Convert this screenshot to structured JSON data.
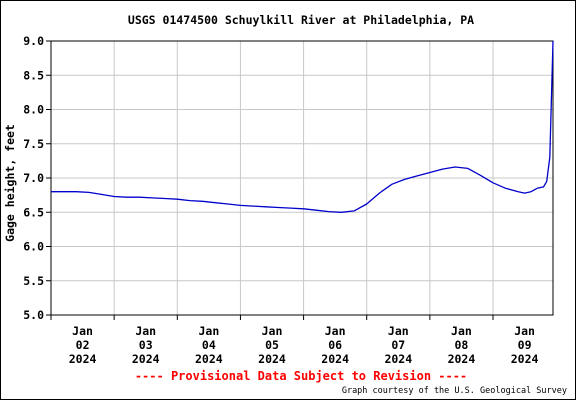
{
  "chart_data": {
    "type": "line",
    "title": "USGS 01474500 Schuylkill River at Philadelphia, PA",
    "ylabel": "Gage height, feet",
    "xlabel": "",
    "ylim": [
      5.0,
      9.0
    ],
    "yticks": [
      "5.0",
      "5.5",
      "6.0",
      "6.5",
      "7.0",
      "7.5",
      "8.0",
      "8.5",
      "9.0"
    ],
    "xlim": [
      0.0,
      7.95
    ],
    "xticks": [
      {
        "x": 0.5,
        "lines": [
          "Jan",
          "02",
          "2024"
        ]
      },
      {
        "x": 1.5,
        "lines": [
          "Jan",
          "03",
          "2024"
        ]
      },
      {
        "x": 2.5,
        "lines": [
          "Jan",
          "04",
          "2024"
        ]
      },
      {
        "x": 3.5,
        "lines": [
          "Jan",
          "05",
          "2024"
        ]
      },
      {
        "x": 4.5,
        "lines": [
          "Jan",
          "06",
          "2024"
        ]
      },
      {
        "x": 5.5,
        "lines": [
          "Jan",
          "07",
          "2024"
        ]
      },
      {
        "x": 6.5,
        "lines": [
          "Jan",
          "08",
          "2024"
        ]
      },
      {
        "x": 7.5,
        "lines": [
          "Jan",
          "09",
          "2024"
        ]
      }
    ],
    "grid": true,
    "series": [
      {
        "color": "#0000cc",
        "x": [
          0.0,
          0.2,
          0.4,
          0.6,
          0.8,
          1.0,
          1.2,
          1.4,
          1.6,
          1.8,
          2.0,
          2.2,
          2.4,
          2.6,
          2.8,
          3.0,
          3.2,
          3.4,
          3.6,
          3.8,
          4.0,
          4.2,
          4.4,
          4.6,
          4.8,
          5.0,
          5.2,
          5.4,
          5.6,
          5.8,
          6.0,
          6.2,
          6.4,
          6.6,
          6.8,
          7.0,
          7.2,
          7.4,
          7.5,
          7.6,
          7.7,
          7.8,
          7.85,
          7.9,
          7.95
        ],
        "y": [
          6.8,
          6.8,
          6.8,
          6.79,
          6.76,
          6.73,
          6.72,
          6.72,
          6.71,
          6.7,
          6.69,
          6.67,
          6.66,
          6.64,
          6.62,
          6.6,
          6.59,
          6.58,
          6.57,
          6.56,
          6.55,
          6.53,
          6.51,
          6.5,
          6.52,
          6.62,
          6.78,
          6.91,
          6.98,
          7.03,
          7.08,
          7.13,
          7.16,
          7.14,
          7.04,
          6.93,
          6.85,
          6.8,
          6.78,
          6.8,
          6.85,
          6.87,
          6.95,
          7.3,
          9.0
        ]
      }
    ]
  },
  "footer": {
    "provisional": "---- Provisional Data Subject to Revision ----",
    "credit": "Graph courtesy of the U.S. Geological Survey"
  },
  "colors": {
    "line": "#0000cc",
    "grid": "#c8c8c8",
    "provisional": "#ff0000"
  }
}
